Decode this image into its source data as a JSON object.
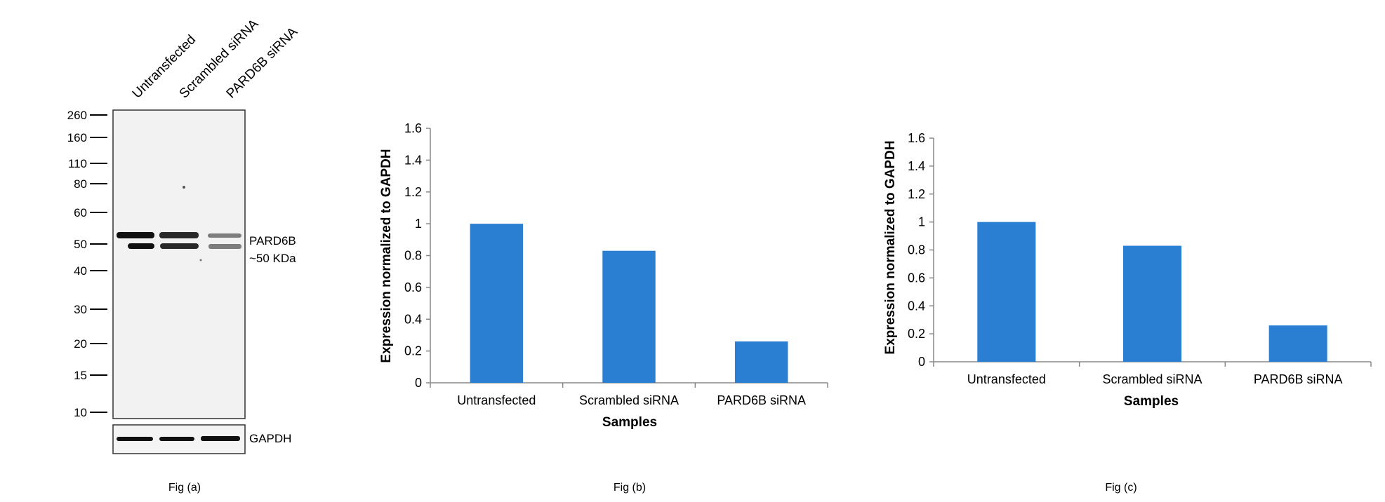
{
  "blot": {
    "lanes": [
      "Untransfected",
      "Scrambled siRNA",
      "PARD6B siRNA"
    ],
    "markers": [
      "260",
      "160",
      "110",
      "80",
      "60",
      "50",
      "40",
      "30",
      "20",
      "15",
      "10"
    ],
    "marker_values": [
      260,
      160,
      110,
      80,
      60,
      50,
      40,
      30,
      20,
      15,
      10
    ],
    "target_label": "PARD6B",
    "target_size": "~50 KDa",
    "control_label": "GAPDH",
    "target_intensity": [
      1.0,
      0.83,
      0.26
    ],
    "caption": "Fig (a)",
    "colors": {
      "band": "#111111",
      "membrane": "#f2f2f2"
    }
  },
  "chart_data": [
    {
      "type": "bar",
      "caption": "Fig (b)",
      "categories": [
        "Untransfected",
        "Scrambled siRNA",
        "PARD6B siRNA"
      ],
      "values": [
        1.0,
        0.83,
        0.26
      ],
      "xlabel": "Samples",
      "ylabel": "Expression normalized to GAPDH",
      "ylim": [
        0,
        1.6
      ],
      "yticks": [
        "0",
        "0.2",
        "0.4",
        "0.6",
        "0.8",
        "1",
        "1.2",
        "1.4",
        "1.6"
      ],
      "grid": false,
      "bar_color": "#2b7fd2"
    },
    {
      "type": "bar",
      "caption": "Fig (c)",
      "categories": [
        "Untransfected",
        "Scrambled siRNA",
        "PARD6B siRNA"
      ],
      "values": [
        1.0,
        0.83,
        0.26
      ],
      "xlabel": "Samples",
      "ylabel": "Expression normalized to GAPDH",
      "ylim": [
        0,
        1.6
      ],
      "yticks": [
        "0",
        "0.2",
        "0.4",
        "0.6",
        "0.8",
        "1",
        "1.2",
        "1.4",
        "1.6"
      ],
      "grid": false,
      "bar_color": "#2b7fd2"
    }
  ]
}
